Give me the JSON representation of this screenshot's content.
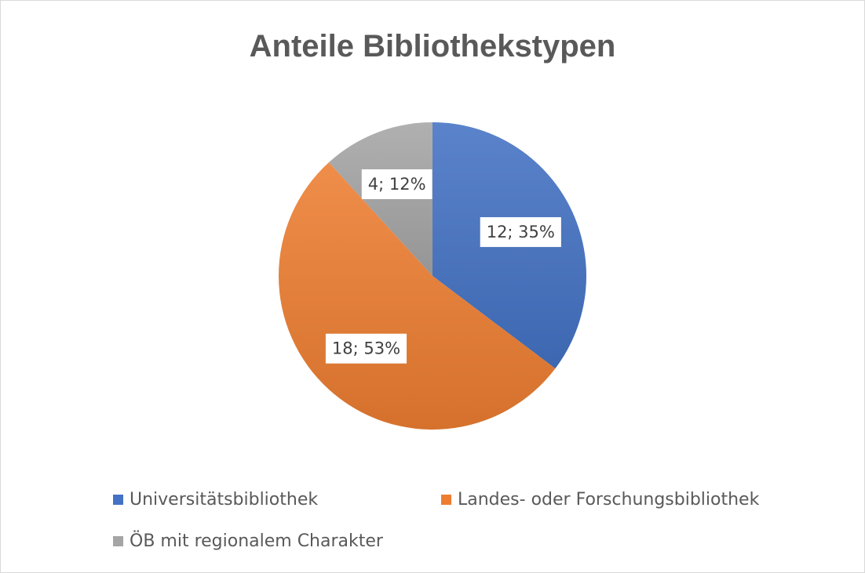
{
  "chart_data": {
    "type": "pie",
    "title": "Anteile Bibliothekstypen",
    "slices": [
      {
        "name": "Universitätsbibliothek",
        "value": 12,
        "percent": 35,
        "label": "12; 35%",
        "color": "#4472c4"
      },
      {
        "name": "Landes- oder Forschungsbibliothek",
        "value": 18,
        "percent": 53,
        "label": "18; 53%",
        "color": "#ed7d31"
      },
      {
        "name": "ÖB mit regionalem Charakter",
        "value": 4,
        "percent": 12,
        "label": "4; 12%",
        "color": "#a5a5a5"
      }
    ],
    "legend_position": "bottom"
  }
}
